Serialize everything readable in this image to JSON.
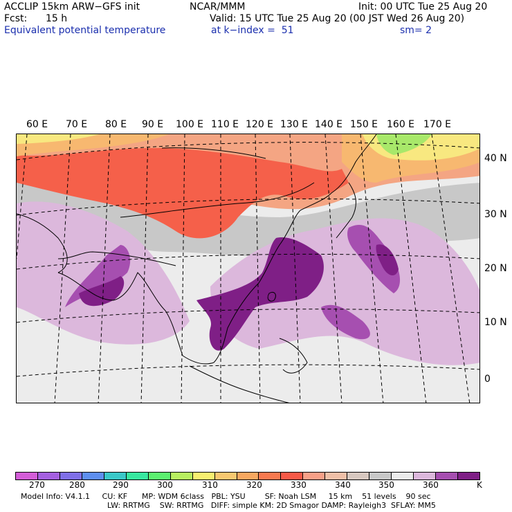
{
  "header": {
    "line1_left": "ACCLIP 15km ARW−GFS init",
    "line1_mid": "NCAR/MMM",
    "line1_right": "Init: 00 UTC Tue 25 Aug 20",
    "fcst_label": "Fcst:",
    "fcst_value": "15 h",
    "valid": "Valid: 15 UTC Tue 25 Aug 20 (00 JST Wed 26 Aug 20)",
    "field_name": "Equivalent potential temperature",
    "level": "at k−index =  51",
    "smoothing": "sm= 2"
  },
  "map": {
    "lon_labels": [
      "60 E",
      "70 E",
      "80 E",
      "90 E",
      "100 E",
      "110 E",
      "120 E",
      "130 E",
      "140 E",
      "150 E",
      "160 E",
      "170 E"
    ],
    "lat_labels": [
      "40 N",
      "30 N",
      "20 N",
      "10 N",
      "0"
    ],
    "colors": {
      "land_bg": "#c8c8c8",
      "ocean_bg": "#ececec",
      "warm": "#f4a583",
      "hot": "#f5604a",
      "orange": "#f7b870",
      "yellow": "#f8e880",
      "green": "#a8e86a",
      "purple_light": "#dcb8dc",
      "purple_mid": "#a64fb0",
      "purple_dark": "#7f1f86"
    }
  },
  "colorbar": {
    "unit": "K",
    "tick_labels": [
      "270",
      "280",
      "290",
      "300",
      "310",
      "320",
      "330",
      "340",
      "350",
      "360"
    ],
    "colors": [
      "#d45ed8",
      "#a560e0",
      "#8070e8",
      "#5e8ff0",
      "#3ac8c8",
      "#38e8a0",
      "#5cf070",
      "#b8f060",
      "#f8f070",
      "#f8c870",
      "#f8a860",
      "#f87a50",
      "#f85a48",
      "#f8a088",
      "#f0c0a8",
      "#d8c8c0",
      "#c8c8c8",
      "#ececec",
      "#dcb8dc",
      "#a64fb0",
      "#7f1f86"
    ]
  },
  "footer": {
    "line1": "Model Info: V4.1.1     CU: KF      MP: WDM 6class   PBL: YSU        SF: Noah LSM     15 km    51 levels    90 sec",
    "line2": "LW: RRTMG    SW: RRTMG   DIFF: simple KM: 2D Smagor DAMP: Rayleigh3  SFLAY: MM5"
  }
}
